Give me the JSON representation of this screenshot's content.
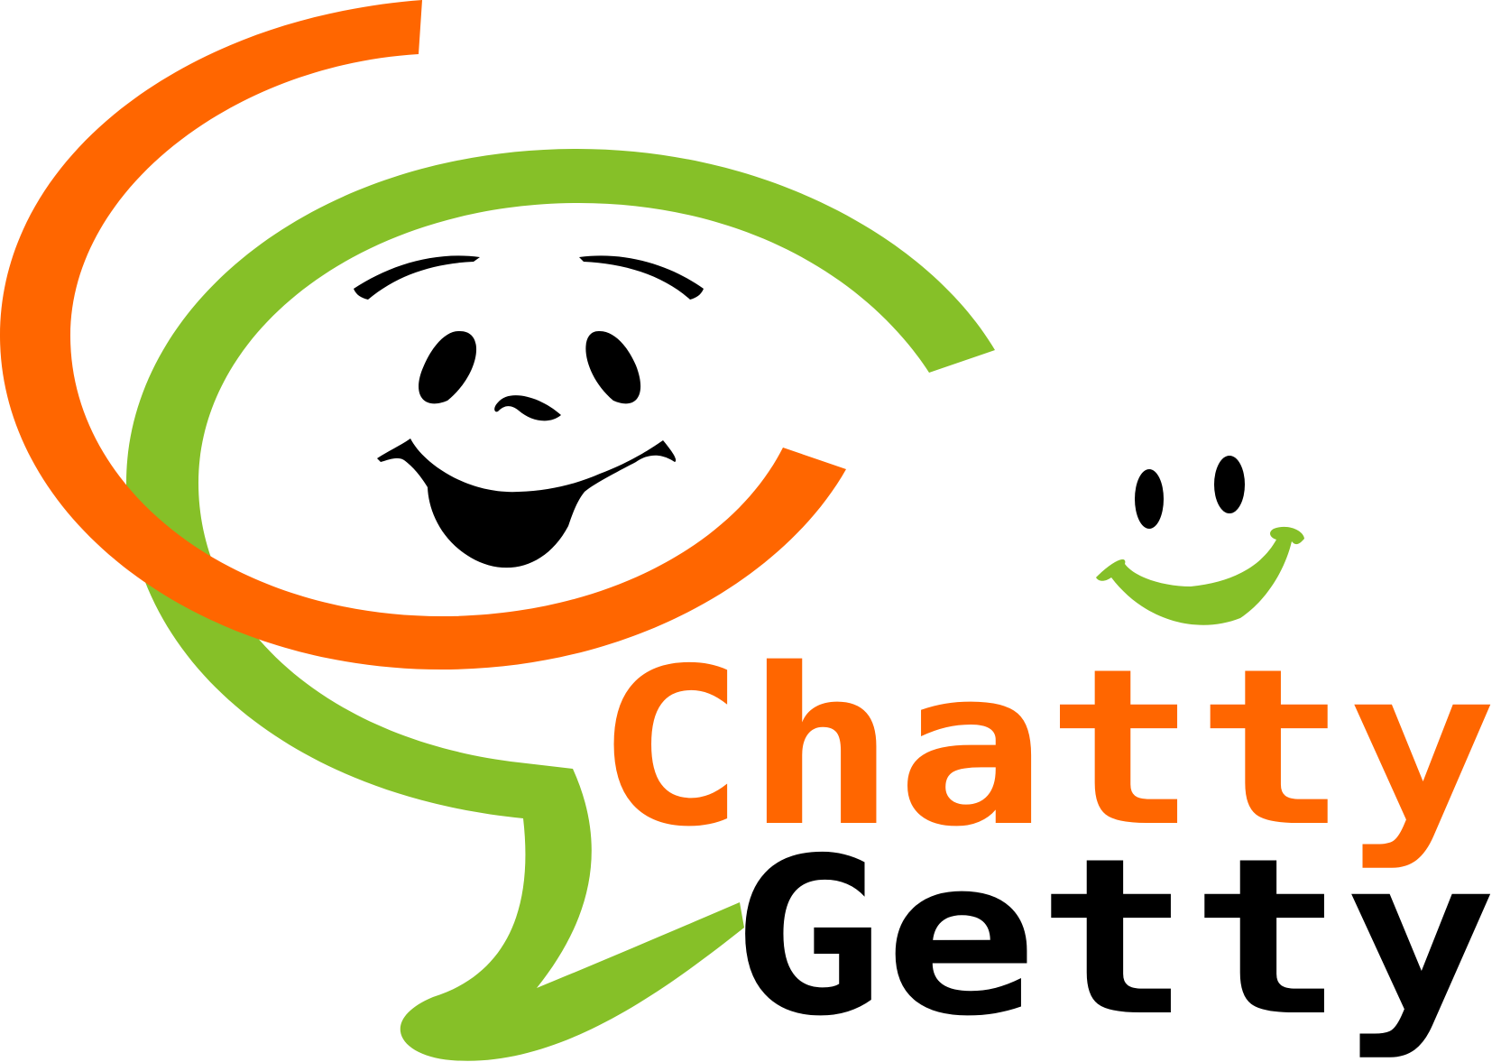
{
  "logo": {
    "name": "Chatty Getty",
    "line1": "Chatty",
    "line2": "Getty"
  },
  "colors": {
    "orange": "#ff6600",
    "green": "#86c028",
    "black": "#000000",
    "background": "#ffffff"
  },
  "icons": [
    "orange-swirl-icon",
    "green-speech-bubble-icon",
    "large-smiling-face-icon",
    "small-green-smiley-icon"
  ]
}
